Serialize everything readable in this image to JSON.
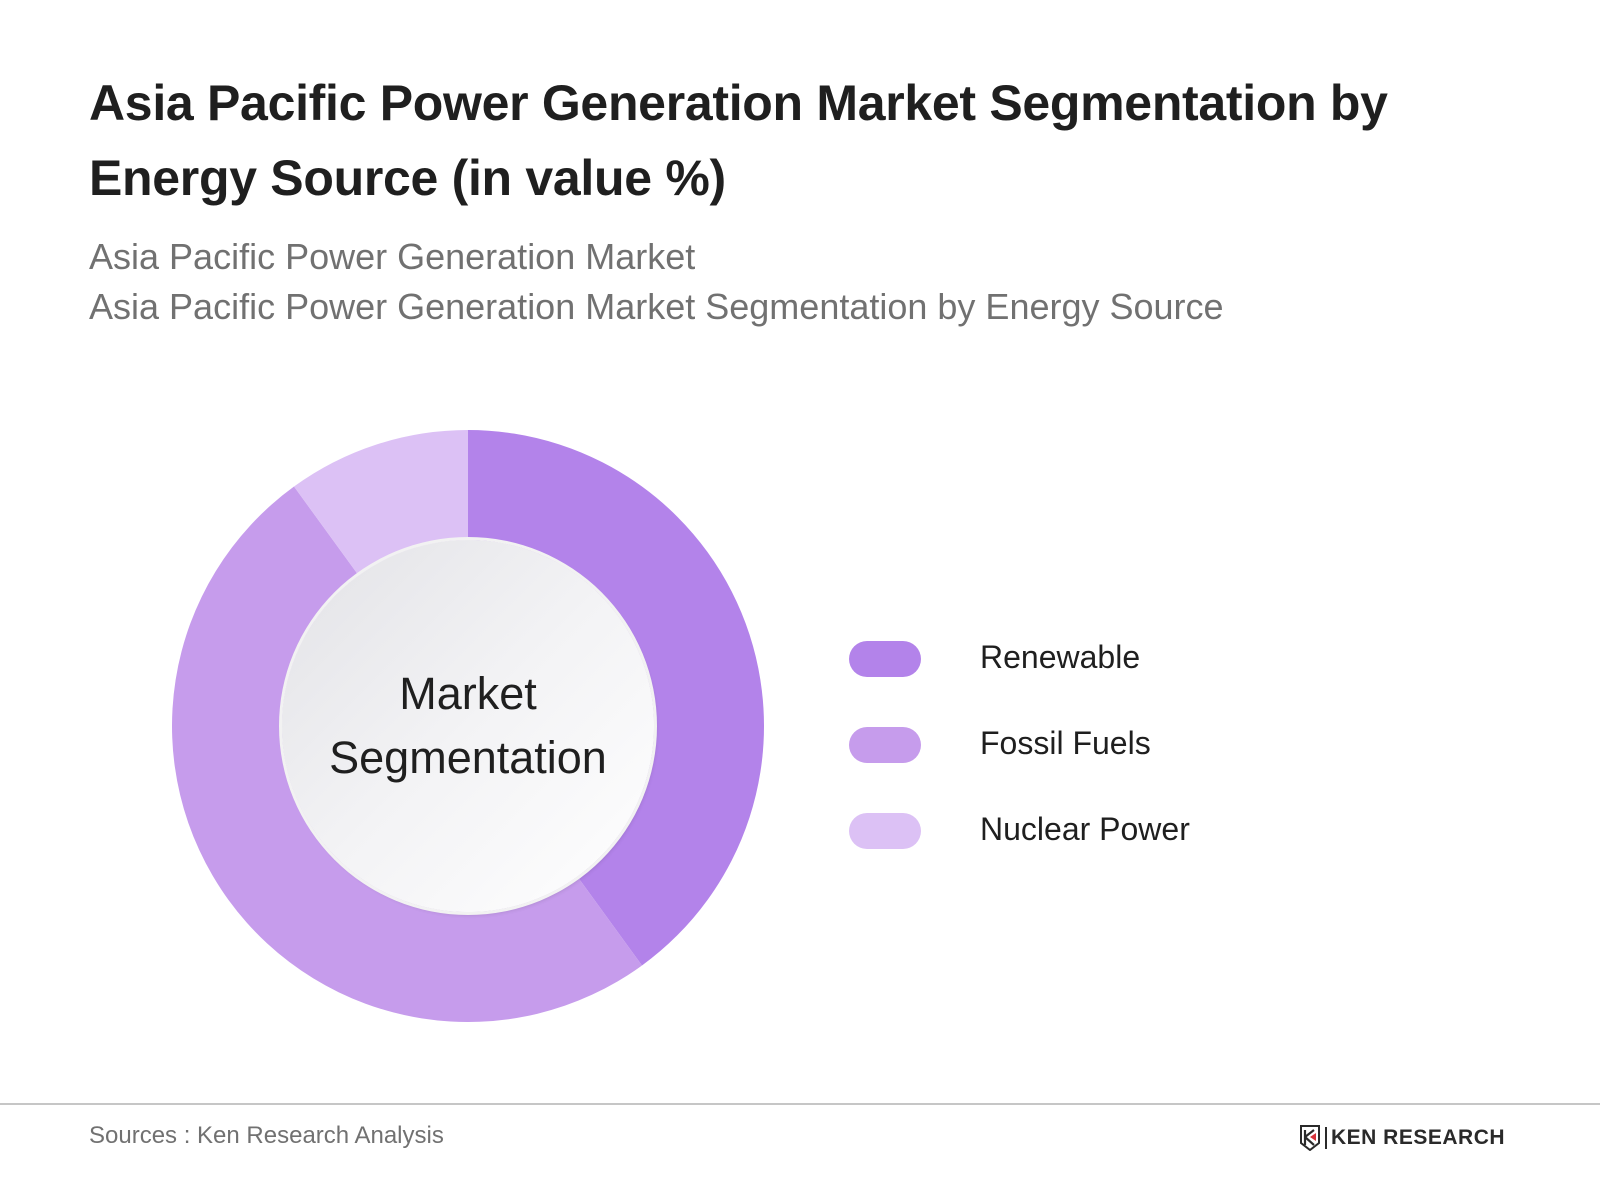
{
  "header": {
    "title": "Asia Pacific Power Generation Market Segmentation by Energy Source (in value %)",
    "subtitle_line1": "Asia Pacific Power Generation Market",
    "subtitle_line2": "Asia Pacific Power Generation Market Segmentation by Energy Source"
  },
  "center_label": {
    "line1": "Market",
    "line2": "Segmentation"
  },
  "legend": [
    {
      "label": "Renewable",
      "color": "#b383ea"
    },
    {
      "label": "Fossil Fuels",
      "color": "#c69cec"
    },
    {
      "label": "Nuclear Power",
      "color": "#dcc1f5"
    }
  ],
  "footer": {
    "sources": "Sources : Ken Research Analysis",
    "logo_text": "KEN RESEARCH"
  },
  "chart_data": {
    "type": "pie",
    "variant": "donut",
    "title": "Asia Pacific Power Generation Market Segmentation by Energy Source (in value %)",
    "subtitle": [
      "Asia Pacific Power Generation Market",
      "Asia Pacific Power Generation Market Segmentation by Energy Source"
    ],
    "center_text": "Market Segmentation",
    "categories": [
      "Renewable",
      "Fossil Fuels",
      "Nuclear Power"
    ],
    "values": [
      40,
      50,
      10
    ],
    "colors": [
      "#b383ea",
      "#c69cec",
      "#dcc1f5"
    ],
    "start_angle": "12 o'clock, clockwise",
    "legend_position": "right",
    "data_labels": false
  }
}
